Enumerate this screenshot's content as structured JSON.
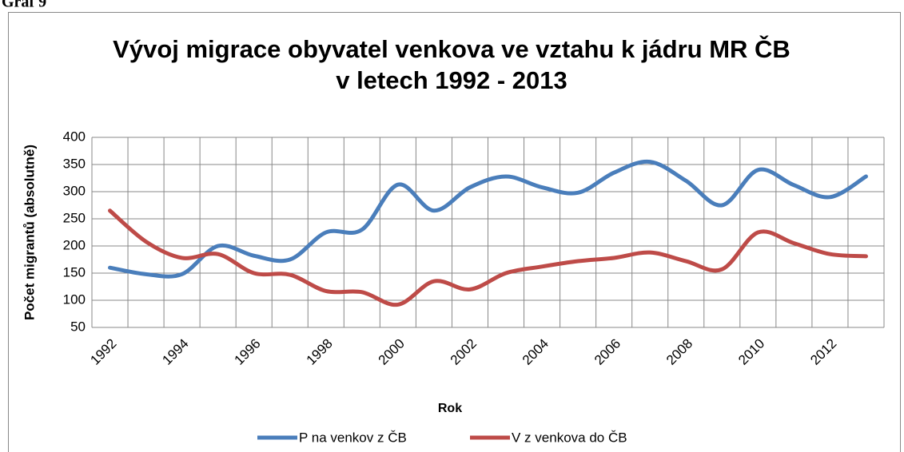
{
  "page_label": "Graf 9",
  "chart_data": {
    "type": "line",
    "title": [
      "Vývoj migrace obyvatel venkova ve vztahu k jádru MR ČB",
      "v letech 1992 - 2013"
    ],
    "x_label": "Rok",
    "y_label": "Počet migrantů (absolutně)",
    "categories": [
      "1992",
      null,
      "1994",
      null,
      "1996",
      null,
      "1998",
      null,
      "2000",
      null,
      "2002",
      null,
      "2004",
      null,
      "2006",
      null,
      "2008",
      null,
      "2010",
      null,
      "2012",
      null
    ],
    "series": [
      {
        "name": "P na venkov z ČB",
        "color": "#4a7ebb",
        "values": [
          160,
          148,
          148,
          200,
          182,
          175,
          225,
          230,
          313,
          265,
          308,
          328,
          308,
          298,
          335,
          355,
          320,
          275,
          340,
          312,
          290,
          328
        ]
      },
      {
        "name": "V z venkova do ČB",
        "color": "#be4b48",
        "values": [
          265,
          208,
          178,
          185,
          150,
          147,
          117,
          115,
          92,
          135,
          120,
          150,
          162,
          172,
          178,
          188,
          172,
          157,
          225,
          205,
          185,
          181
        ]
      }
    ],
    "ylim": [
      50,
      400
    ],
    "yticks": [
      50,
      100,
      150,
      200,
      250,
      300,
      350,
      400
    ],
    "grid": true,
    "legend": "bottom"
  }
}
